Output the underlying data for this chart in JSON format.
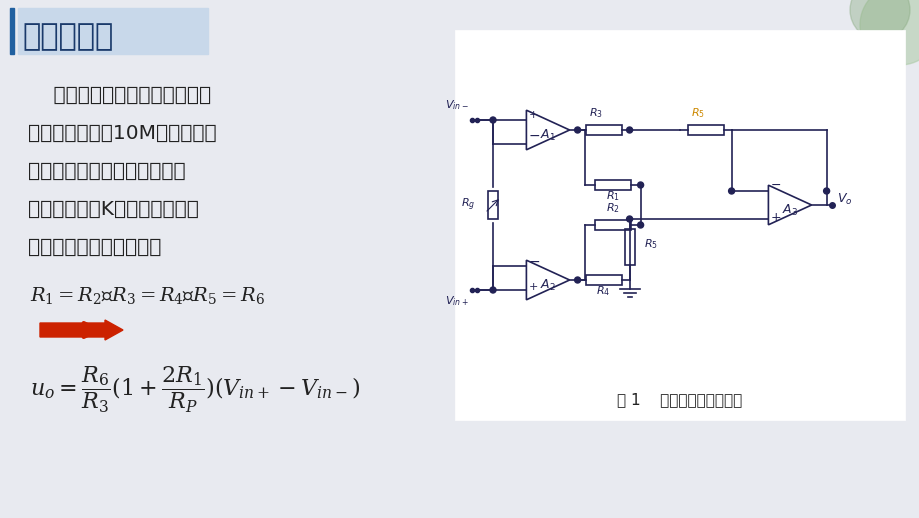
{
  "bg_color": "#e8eaf0",
  "title": "仪表放大器",
  "title_color": "#1a3a6b",
  "title_bar_color": "#2060a0",
  "body_text_lines": [
    "    但是没有任何一家芯片厂商会",
    "制作电阻网络为10M的差动放大",
    "器，因此对于惠斯通电桥这种",
    "源阻抗通常为K欧姆量级的应用",
    "中，差动放大器不适合。"
  ],
  "eq1": "$R_1 = R_2$、$R_3 = R_4$、$R_5 = R_6$",
  "eq2": "$u_o = \\dfrac{R_6}{R_3}(1+\\dfrac{2R_1}{R_P})(V_{in+} - V_{in-})$",
  "fig_caption": "图 1    仪表放大器典型结构",
  "panel_bg": "#ffffff",
  "text_color": "#222222",
  "circuit_color": "#222255",
  "arrow_color": "#cc2200",
  "accent_color": "#cc8800"
}
